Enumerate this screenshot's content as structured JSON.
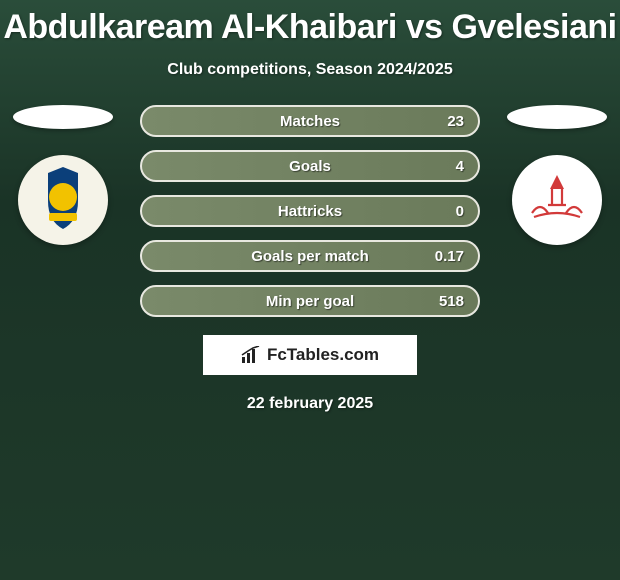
{
  "title": "Abdulkaream Al-Khaibari vs Gvelesiani",
  "subtitle": "Club competitions, Season 2024/2025",
  "date": "22 february 2025",
  "brand": {
    "name": "FcTables.com"
  },
  "colors": {
    "row_border": "#e8e8e0",
    "row_fill_start": "#7a8a6a",
    "row_fill_end": "#6a7a5a",
    "text": "#ffffff",
    "bg_top": "#2a4d3a",
    "bg_bottom": "#1f3a2a"
  },
  "left": {
    "flag_name": "left-flag",
    "flag_bg": "#ffffff",
    "crest_name": "al-nassr-crest",
    "crest_bg": "#f5f3e8",
    "crest_inner": "#0b3f7a",
    "crest_center": "#f2c200"
  },
  "right": {
    "flag_name": "right-flag",
    "flag_bg": "#ffffff",
    "crest_name": "right-crest",
    "crest_bg": "#ffffff",
    "crest_line": "#d23a3a"
  },
  "stats": [
    {
      "label": "Matches",
      "value": "23"
    },
    {
      "label": "Goals",
      "value": "4"
    },
    {
      "label": "Hattricks",
      "value": "0"
    },
    {
      "label": "Goals per match",
      "value": "0.17"
    },
    {
      "label": "Min per goal",
      "value": "518"
    }
  ]
}
